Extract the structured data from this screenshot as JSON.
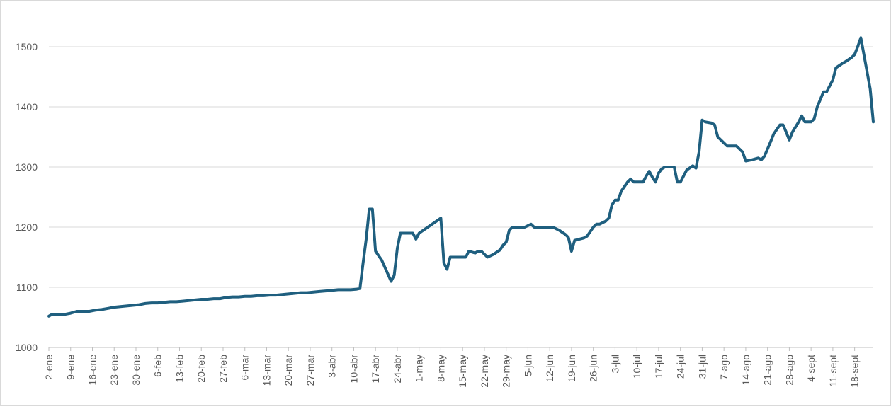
{
  "chart_data": {
    "type": "line",
    "title": "",
    "xlabel": "",
    "ylabel": "",
    "ylim": [
      1000,
      1500
    ],
    "yticks": [
      1000,
      1100,
      1200,
      1300,
      1400,
      1500
    ],
    "grid": true,
    "legend": "none",
    "xaxis": {
      "start": "2-ene",
      "tick_step_days": 7,
      "tick_labels": [
        "2-ene",
        "9-ene",
        "16-ene",
        "23-ene",
        "30-ene",
        "6-feb",
        "13-feb",
        "20-feb",
        "27-feb",
        "6-mar",
        "13-mar",
        "20-mar",
        "27-mar",
        "3-abr",
        "10-abr",
        "17-abr",
        "24-abr",
        "1-may",
        "8-may",
        "15-may",
        "22-may",
        "29-may",
        "5-jun",
        "12-jun",
        "19-jun",
        "26-jun",
        "3-jul",
        "10-jul",
        "17-jul",
        "24-jul",
        "31-jul",
        "7-ago",
        "14-ago",
        "21-ago",
        "28-ago",
        "4-sept",
        "11-sept",
        "18-sept"
      ]
    },
    "series": [
      {
        "name": "",
        "color": "#1f5f7f",
        "points": [
          [
            "2-ene",
            1052
          ],
          [
            "3-ene",
            1055
          ],
          [
            "5-ene",
            1055
          ],
          [
            "7-ene",
            1055
          ],
          [
            "9-ene",
            1057
          ],
          [
            "11-ene",
            1060
          ],
          [
            "13-ene",
            1060
          ],
          [
            "15-ene",
            1060
          ],
          [
            "17-ene",
            1062
          ],
          [
            "19-ene",
            1063
          ],
          [
            "21-ene",
            1065
          ],
          [
            "23-ene",
            1067
          ],
          [
            "25-ene",
            1068
          ],
          [
            "27-ene",
            1069
          ],
          [
            "29-ene",
            1070
          ],
          [
            "31-ene",
            1071
          ],
          [
            "2-feb",
            1073
          ],
          [
            "4-feb",
            1074
          ],
          [
            "6-feb",
            1074
          ],
          [
            "8-feb",
            1075
          ],
          [
            "10-feb",
            1076
          ],
          [
            "12-feb",
            1076
          ],
          [
            "14-feb",
            1077
          ],
          [
            "16-feb",
            1078
          ],
          [
            "18-feb",
            1079
          ],
          [
            "20-feb",
            1080
          ],
          [
            "22-feb",
            1080
          ],
          [
            "24-feb",
            1081
          ],
          [
            "26-feb",
            1081
          ],
          [
            "28-feb",
            1083
          ],
          [
            "1-mar",
            1084
          ],
          [
            "3-mar",
            1084
          ],
          [
            "5-mar",
            1085
          ],
          [
            "7-mar",
            1085
          ],
          [
            "9-mar",
            1086
          ],
          [
            "11-mar",
            1086
          ],
          [
            "13-mar",
            1087
          ],
          [
            "15-mar",
            1087
          ],
          [
            "17-mar",
            1088
          ],
          [
            "19-mar",
            1089
          ],
          [
            "21-mar",
            1090
          ],
          [
            "23-mar",
            1091
          ],
          [
            "25-mar",
            1091
          ],
          [
            "27-mar",
            1092
          ],
          [
            "29-mar",
            1093
          ],
          [
            "31-mar",
            1094
          ],
          [
            "2-abr",
            1095
          ],
          [
            "4-abr",
            1096
          ],
          [
            "6-abr",
            1096
          ],
          [
            "8-abr",
            1096
          ],
          [
            "10-abr",
            1097
          ],
          [
            "11-abr",
            1098
          ],
          [
            "12-abr",
            1140
          ],
          [
            "13-abr",
            1180
          ],
          [
            "14-abr",
            1230
          ],
          [
            "15-abr",
            1230
          ],
          [
            "16-abr",
            1160
          ],
          [
            "18-abr",
            1145
          ],
          [
            "21-abr",
            1110
          ],
          [
            "22-abr",
            1120
          ],
          [
            "23-abr",
            1165
          ],
          [
            "24-abr",
            1190
          ],
          [
            "26-abr",
            1190
          ],
          [
            "28-abr",
            1190
          ],
          [
            "29-abr",
            1180
          ],
          [
            "30-abr",
            1190
          ],
          [
            "7-may",
            1215
          ],
          [
            "8-may",
            1140
          ],
          [
            "9-may",
            1130
          ],
          [
            "10-may",
            1150
          ],
          [
            "12-may",
            1150
          ],
          [
            "15-may",
            1150
          ],
          [
            "16-may",
            1160
          ],
          [
            "18-may",
            1157
          ],
          [
            "19-may",
            1160
          ],
          [
            "20-may",
            1160
          ],
          [
            "22-may",
            1150
          ],
          [
            "24-may",
            1155
          ],
          [
            "26-may",
            1162
          ],
          [
            "27-may",
            1170
          ],
          [
            "28-may",
            1175
          ],
          [
            "29-may",
            1195
          ],
          [
            "30-may",
            1200
          ],
          [
            "1-jun",
            1200
          ],
          [
            "3-jun",
            1200
          ],
          [
            "5-jun",
            1205
          ],
          [
            "6-jun",
            1200
          ],
          [
            "8-jun",
            1200
          ],
          [
            "10-jun",
            1200
          ],
          [
            "12-jun",
            1200
          ],
          [
            "14-jun",
            1195
          ],
          [
            "16-jun",
            1188
          ],
          [
            "17-jun",
            1183
          ],
          [
            "18-jun",
            1160
          ],
          [
            "19-jun",
            1178
          ],
          [
            "22-jun",
            1182
          ],
          [
            "23-jun",
            1185
          ],
          [
            "25-jun",
            1200
          ],
          [
            "26-jun",
            1205
          ],
          [
            "27-jun",
            1205
          ],
          [
            "29-jun",
            1210
          ],
          [
            "30-jun",
            1215
          ],
          [
            "1-jul",
            1237
          ],
          [
            "2-jul",
            1245
          ],
          [
            "3-jul",
            1245
          ],
          [
            "4-jul",
            1260
          ],
          [
            "6-jul",
            1275
          ],
          [
            "7-jul",
            1280
          ],
          [
            "8-jul",
            1275
          ],
          [
            "10-jul",
            1275
          ],
          [
            "11-jul",
            1275
          ],
          [
            "12-jul",
            1285
          ],
          [
            "13-jul",
            1293
          ],
          [
            "14-jul",
            1283
          ],
          [
            "15-jul",
            1275
          ],
          [
            "16-jul",
            1290
          ],
          [
            "17-jul",
            1297
          ],
          [
            "18-jul",
            1300
          ],
          [
            "19-jul",
            1300
          ],
          [
            "21-jul",
            1300
          ],
          [
            "22-jul",
            1275
          ],
          [
            "23-jul",
            1275
          ],
          [
            "24-jul",
            1285
          ],
          [
            "25-jul",
            1295
          ],
          [
            "27-jul",
            1302
          ],
          [
            "28-jul",
            1298
          ],
          [
            "29-jul",
            1325
          ],
          [
            "30-jul",
            1378
          ],
          [
            "31-jul",
            1375
          ],
          [
            "2-ago",
            1373
          ],
          [
            "3-ago",
            1370
          ],
          [
            "4-ago",
            1350
          ],
          [
            "5-ago",
            1345
          ],
          [
            "7-ago",
            1335
          ],
          [
            "9-ago",
            1335
          ],
          [
            "10-ago",
            1335
          ],
          [
            "12-ago",
            1325
          ],
          [
            "13-ago",
            1310
          ],
          [
            "15-ago",
            1312
          ],
          [
            "17-ago",
            1315
          ],
          [
            "18-ago",
            1312
          ],
          [
            "19-ago",
            1318
          ],
          [
            "20-ago",
            1330
          ],
          [
            "21-ago",
            1342
          ],
          [
            "22-ago",
            1355
          ],
          [
            "24-ago",
            1370
          ],
          [
            "25-ago",
            1370
          ],
          [
            "26-ago",
            1358
          ],
          [
            "27-ago",
            1345
          ],
          [
            "28-ago",
            1358
          ],
          [
            "30-ago",
            1375
          ],
          [
            "31-ago",
            1385
          ],
          [
            "1-sept",
            1375
          ],
          [
            "3-sept",
            1375
          ],
          [
            "4-sept",
            1380
          ],
          [
            "5-sept",
            1400
          ],
          [
            "7-sept",
            1425
          ],
          [
            "8-sept",
            1425
          ],
          [
            "10-sept",
            1445
          ],
          [
            "11-sept",
            1465
          ],
          [
            "13-sept",
            1472
          ],
          [
            "14-sept",
            1475
          ],
          [
            "16-sept",
            1482
          ],
          [
            "17-sept",
            1487
          ],
          [
            "18-sept",
            1500
          ],
          [
            "19-sept",
            1515
          ],
          [
            "22-sept",
            1430
          ],
          [
            "23-sept",
            1375
          ]
        ]
      }
    ]
  }
}
